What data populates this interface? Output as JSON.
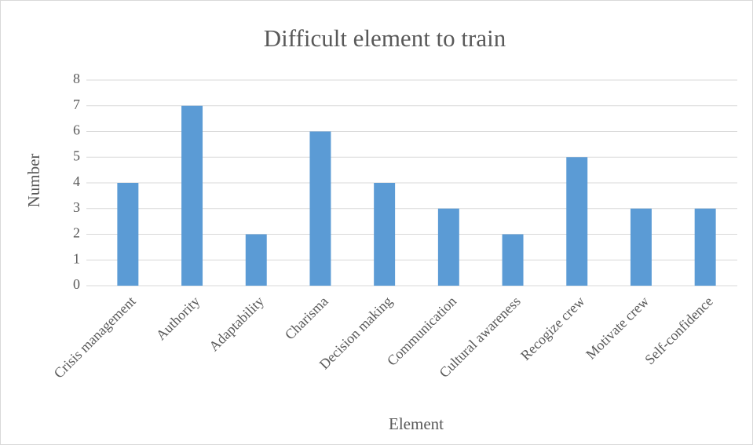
{
  "chart_data": {
    "type": "bar",
    "title": "Difficult element to train",
    "x_label": "Element",
    "y_label": "Number",
    "categories": [
      "Crisis management",
      "Authority",
      "Adaptability",
      "Charisma",
      "Decision making",
      "Communication",
      "Cultural awareness",
      "Recogize crew",
      "Motivate crew",
      "Self-confidence"
    ],
    "values": [
      4,
      7,
      2,
      6,
      4,
      3,
      2,
      5,
      3,
      3
    ],
    "color": "#5b9bd5",
    "ylim": [
      0,
      8
    ],
    "yticks": [
      0,
      1,
      2,
      3,
      4,
      5,
      6,
      7,
      8
    ],
    "grid": true
  }
}
